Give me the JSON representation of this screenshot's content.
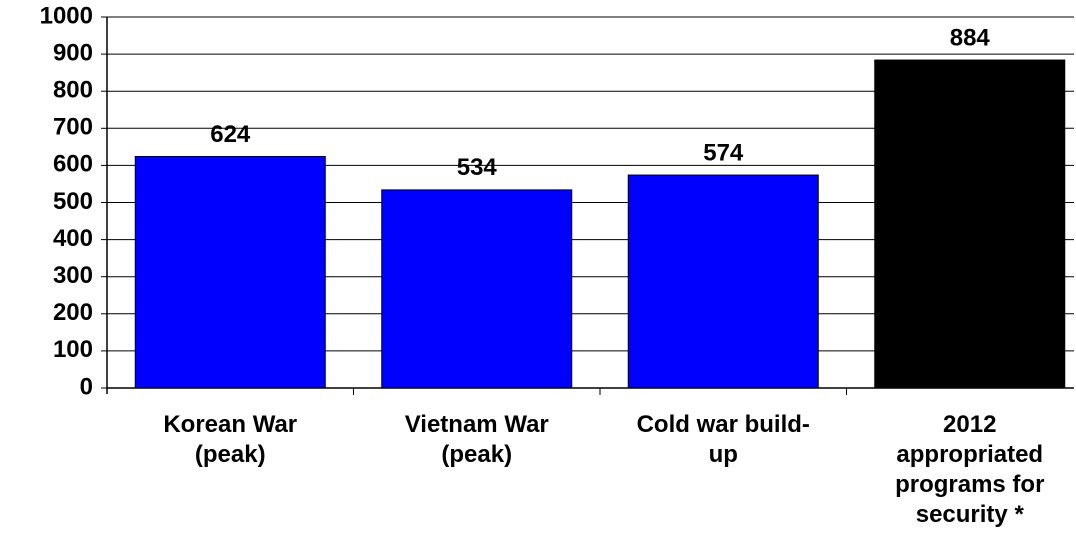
{
  "chart_data": {
    "type": "bar",
    "categories": [
      "Korean War\n(peak)",
      "Vietnam War\n(peak)",
      "Cold war build-\nup",
      "2012\nappropriated\nprograms for\nsecurity *"
    ],
    "values": [
      624,
      534,
      574,
      884
    ],
    "colors": [
      "#0000ff",
      "#0000ff",
      "#0000ff",
      "#000000"
    ],
    "ylim": [
      0,
      1000
    ],
    "yticks": [
      0,
      100,
      200,
      300,
      400,
      500,
      600,
      700,
      800,
      900,
      1000
    ],
    "grid": true
  }
}
